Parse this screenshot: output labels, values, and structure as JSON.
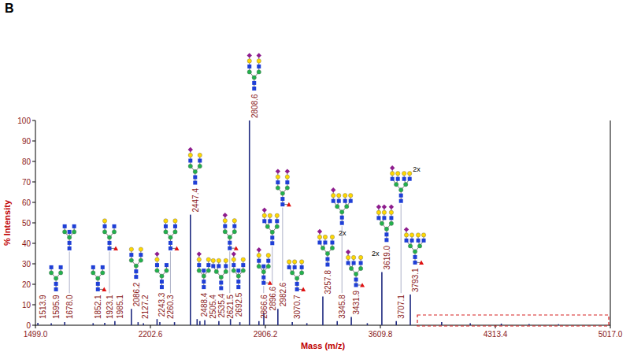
{
  "chart_data": {
    "type": "stick",
    "title": "B",
    "x_label": "Mass (m/z)",
    "y_label": "% Intensity",
    "color": "#1f2a80",
    "xlim": [
      1499.0,
      5017.0
    ],
    "xticks": [
      {
        "value": 1499.0,
        "label": "1499.0"
      },
      {
        "value": 2202.6,
        "label": "2202.6"
      },
      {
        "value": 2906.2,
        "label": "2906.2"
      },
      {
        "value": 3609.8,
        "label": "3609.8"
      },
      {
        "value": 4313.4,
        "label": "4313.4"
      },
      {
        "value": 5017.0,
        "label": "5017.0"
      }
    ],
    "ylim": [
      0,
      100
    ],
    "yticks": [
      0,
      10,
      20,
      30,
      40,
      50,
      60,
      70,
      80,
      90,
      100
    ],
    "x": [
      1513.9,
      1595.9,
      1678.0,
      1852.1,
      1923.1,
      1985.1,
      2086.2,
      2127.2,
      2160.0,
      2243.3,
      2260.3,
      2350.0,
      2447.4,
      2488.4,
      2505.4,
      2535.4,
      2621.5,
      2692.5,
      2750.0,
      2808.6,
      2866.6,
      2896.6,
      2982.6,
      3070.7,
      3160.0,
      3257.8,
      3345.8,
      3431.9,
      3530.0,
      3619.0,
      3707.1,
      3793.1,
      3985.0,
      4160.0,
      4350.0,
      4520.0,
      4700.0
    ],
    "values": [
      1.2,
      1.0,
      1.5,
      1.0,
      1.2,
      2.0,
      8,
      1.5,
      1,
      3,
      1.5,
      1.5,
      54,
      3,
      2,
      2.5,
      2,
      3,
      1.5,
      100,
      2,
      6,
      8,
      1.5,
      1,
      14,
      2,
      4,
      1,
      26,
      2,
      15,
      1.5,
      1,
      0.8,
      0.6,
      0.5
    ],
    "peak_labels": [
      "1513.9",
      "1595.9",
      "1678.0",
      "1852.1",
      "1923.1",
      "1985.1",
      "2086.2",
      "2127.2",
      null,
      "2243.3",
      "2260.3",
      null,
      "2447.4",
      "2488.4",
      "2505.4",
      "2535.4",
      "2621.5",
      "2692.5",
      null,
      "2808.6",
      "2866.6",
      "2896.6",
      "2982.6",
      "3070.7",
      null,
      "3257.8",
      "3345.8",
      "3431.9",
      null,
      "3619.0",
      "3707.1",
      "3793.1",
      null,
      null,
      null,
      null,
      null
    ],
    "peak_notes": [
      null,
      null,
      null,
      null,
      null,
      null,
      null,
      null,
      null,
      null,
      null,
      null,
      null,
      null,
      null,
      null,
      null,
      null,
      null,
      null,
      null,
      null,
      null,
      null,
      null,
      "2x",
      null,
      "2x",
      null,
      null,
      "2x",
      null,
      null,
      null,
      null,
      null,
      null
    ]
  }
}
